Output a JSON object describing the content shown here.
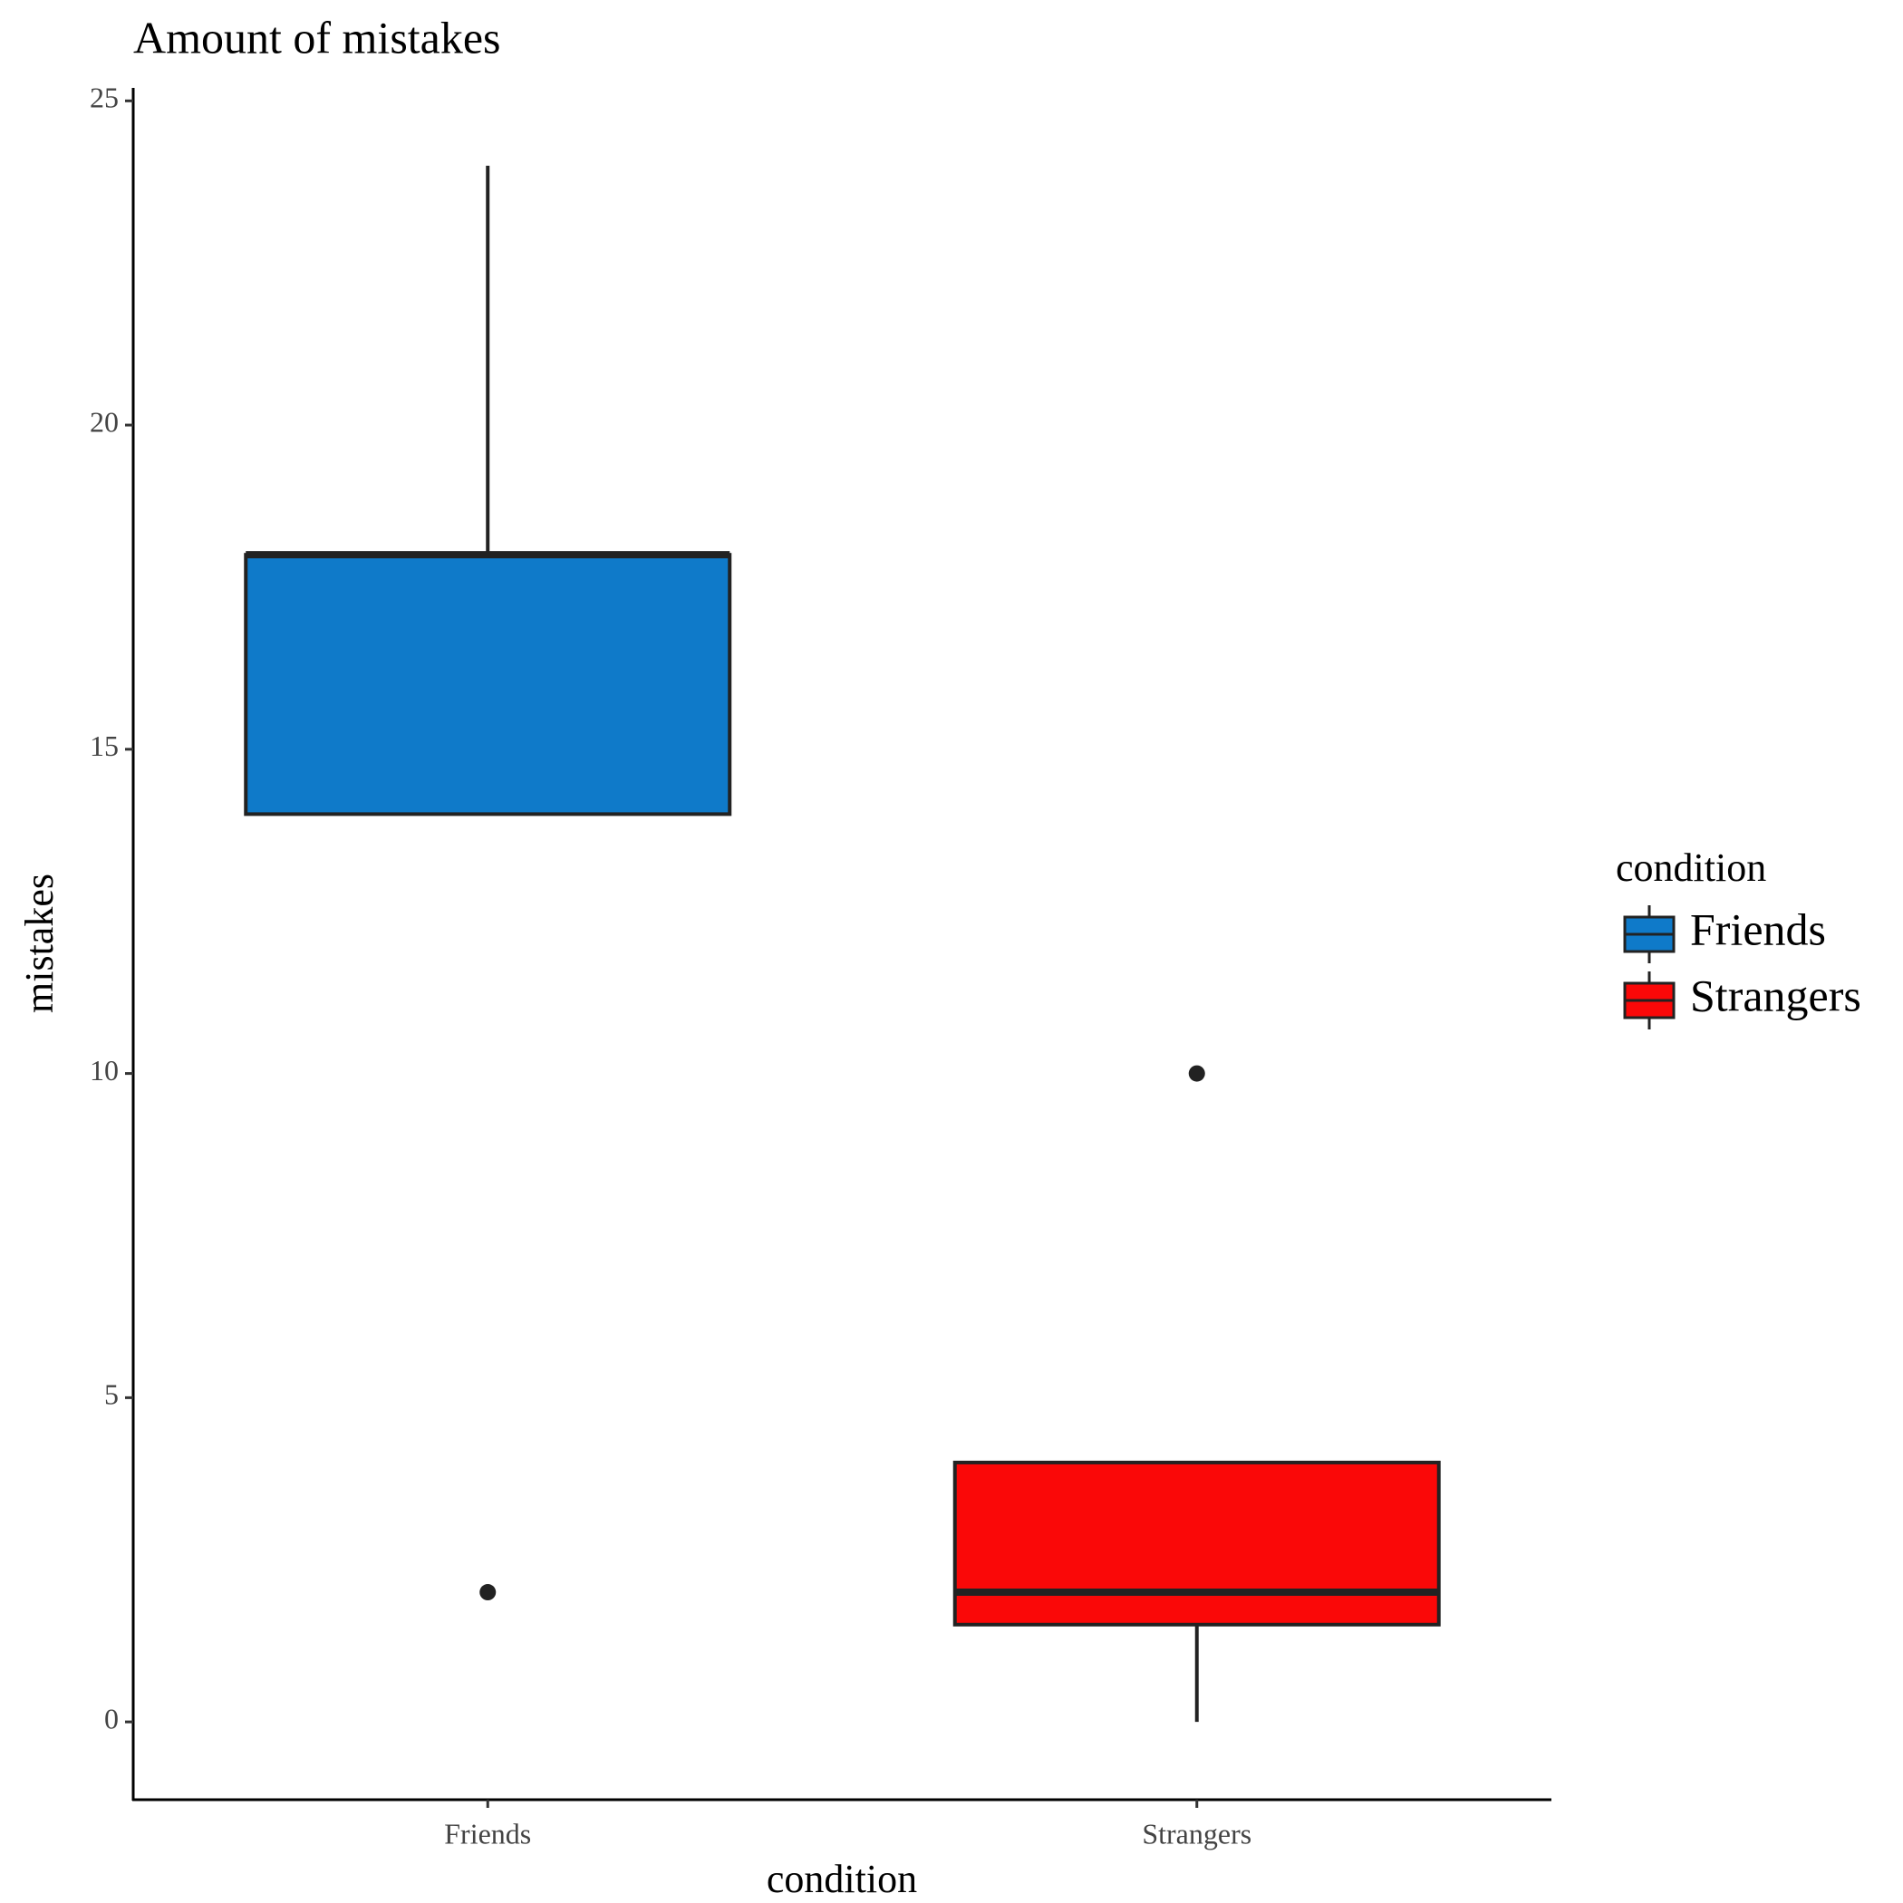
{
  "chart_data": {
    "type": "box",
    "title": "Amount of mistakes",
    "x_label": "condition",
    "y_label": "mistakes",
    "legend_title": "condition",
    "categories": [
      "Friends",
      "Strangers"
    ],
    "series": [
      {
        "name": "Friends",
        "color": "#0f7ac9",
        "whisker_low": 14,
        "q1": 14,
        "median": 18,
        "q3": 18,
        "whisker_high": 24,
        "outliers": [
          2
        ]
      },
      {
        "name": "Strangers",
        "color": "#fa0808",
        "whisker_low": 0,
        "q1": 1.5,
        "median": 2,
        "q3": 4,
        "whisker_high": 4,
        "outliers": [
          10
        ]
      }
    ],
    "ylim": [
      -1.2,
      25.2
    ],
    "yticks": [
      0,
      5,
      10,
      15,
      20,
      25
    ],
    "grid": false,
    "legend": "right"
  }
}
